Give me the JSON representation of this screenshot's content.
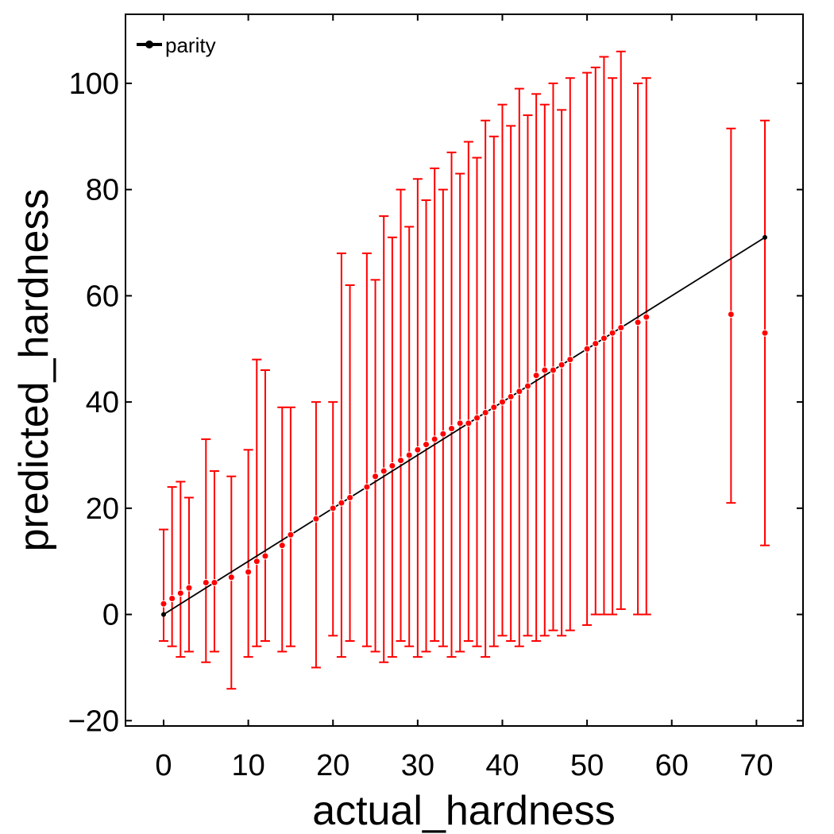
{
  "chart_data": {
    "type": "scatter",
    "xlabel": "actual_hardness",
    "ylabel": "predicted_hardness",
    "xlim": [
      -4.5,
      75.5
    ],
    "ylim": [
      -21,
      113
    ],
    "xticks": [
      0,
      10,
      20,
      30,
      40,
      50,
      60,
      70
    ],
    "yticks": [
      -20,
      0,
      20,
      40,
      60,
      80,
      100
    ],
    "xtick_labels": [
      "0",
      "10",
      "20",
      "30",
      "40",
      "50",
      "60",
      "70"
    ],
    "ytick_labels": [
      "−20",
      "0",
      "20",
      "40",
      "60",
      "80",
      "100"
    ],
    "grid": false,
    "legend": {
      "position": "top-left",
      "entries": [
        "parity"
      ]
    },
    "parity": {
      "name": "parity",
      "x": [
        0,
        71
      ],
      "y": [
        0,
        71
      ],
      "color": "#000000"
    },
    "series": [
      {
        "marker_color": "#ff0000",
        "x": [
          0,
          1,
          2,
          3,
          5,
          6,
          8,
          10,
          11,
          12,
          14,
          15,
          18,
          20,
          21,
          22,
          24,
          25,
          26,
          27,
          28,
          29,
          30,
          31,
          32,
          33,
          34,
          35,
          36,
          37,
          38,
          39,
          40,
          41,
          42,
          43,
          44,
          45,
          46,
          47,
          48,
          50,
          51,
          52,
          53,
          54,
          56,
          57,
          67,
          71
        ],
        "y": [
          2,
          3,
          4,
          5,
          6,
          6,
          7,
          8,
          10,
          11,
          13,
          15,
          18,
          20,
          21,
          22,
          24,
          26,
          27,
          28,
          29,
          30,
          31,
          32,
          33,
          34,
          35,
          36,
          36,
          37,
          38,
          39,
          40,
          41,
          42,
          43,
          45,
          46,
          46,
          47,
          48,
          50,
          51,
          52,
          53,
          54,
          55,
          56,
          56.5,
          53
        ],
        "y_low": [
          -5,
          -6,
          -8,
          -7,
          -9,
          -7,
          -14,
          -8,
          -6,
          -5,
          -7,
          -6,
          -10,
          -4,
          -8,
          -5,
          -6,
          -7,
          -9,
          -8,
          -5,
          -6,
          -8,
          -7,
          -5,
          -6,
          -8,
          -7,
          -5,
          -6,
          -8,
          -6,
          -4,
          -5,
          -6,
          -4,
          -5,
          -4,
          -3,
          -4,
          -3,
          -2,
          0,
          0,
          0,
          1,
          0,
          0,
          21,
          13
        ],
        "y_high": [
          16,
          24,
          25,
          22,
          33,
          27,
          26,
          31,
          48,
          46,
          39,
          39,
          40,
          40,
          68,
          62,
          68,
          63,
          75,
          71,
          80,
          73,
          82,
          78,
          84,
          80,
          87,
          83,
          89,
          86,
          93,
          90,
          96,
          92,
          99,
          94,
          98,
          96,
          100,
          95,
          101,
          102,
          103,
          105,
          101,
          106,
          100,
          101,
          91.5,
          93
        ]
      }
    ]
  }
}
